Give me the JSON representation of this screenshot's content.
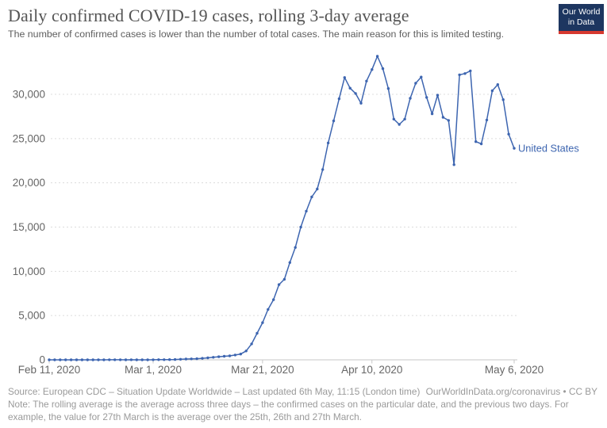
{
  "header": {
    "title": "Daily confirmed COVID-19 cases, rolling 3-day average",
    "subtitle": "The number of confirmed cases is lower than the number of total cases. The main reason for this is limited testing.",
    "logo_line1": "Our World",
    "logo_line2": "in Data",
    "logo_bg_color": "#1d3660",
    "logo_accent_color": "#d6392f"
  },
  "chart_data": {
    "type": "line",
    "title": "Daily confirmed COVID-19 cases, rolling 3-day average",
    "series_label": "United States",
    "line_color": "#3d65b0",
    "grid": "horizontal dashed gridlines",
    "legend_position": "end-of-line label",
    "x_start_date": "Feb 11, 2020",
    "x_end_date": "May 6, 2020",
    "x_tick_labels": [
      "Feb 11, 2020",
      "Mar 1, 2020",
      "Mar 21, 2020",
      "Apr 10, 2020",
      "May 6, 2020"
    ],
    "x_tick_days": [
      0,
      19,
      39,
      59,
      85
    ],
    "y_ticks": [
      0,
      5000,
      10000,
      15000,
      20000,
      25000,
      30000
    ],
    "y_tick_labels": [
      "0",
      "5,000",
      "10,000",
      "15,000",
      "20,000",
      "25,000",
      "30,000"
    ],
    "ylim": [
      0,
      34500
    ],
    "values": [
      0,
      0,
      1,
      1,
      0,
      0,
      0,
      0,
      0,
      0,
      1,
      6,
      8,
      6,
      1,
      6,
      2,
      3,
      4,
      8,
      14,
      20,
      24,
      39,
      66,
      89,
      105,
      122,
      168,
      225,
      287,
      350,
      400,
      450,
      550,
      650,
      1000,
      1800,
      3000,
      4200,
      5700,
      6800,
      8500,
      9100,
      11000,
      12700,
      15000,
      16800,
      18400,
      19300,
      21500,
      24500,
      27000,
      29500,
      31900,
      30700,
      30100,
      29000,
      31500,
      32800,
      34300,
      32900,
      30650,
      27200,
      26600,
      27200,
      29550,
      31250,
      31950,
      29650,
      27800,
      29900,
      27400,
      27050,
      22050,
      32200,
      32350,
      32650,
      24650,
      24400,
      27100,
      30400,
      31100,
      29400,
      25500,
      23900
    ]
  },
  "footer": {
    "source": "Source: European CDC – Situation Update Worldwide – Last updated 6th May, 11:15 (London time)",
    "link": "OurWorldInData.org/coronavirus • CC BY",
    "note": "Note: The rolling average is the average across three days – the confirmed cases on the particular date, and the previous two days. For example, the value for 27th March is the average over the 25th, 26th and 27th March."
  }
}
